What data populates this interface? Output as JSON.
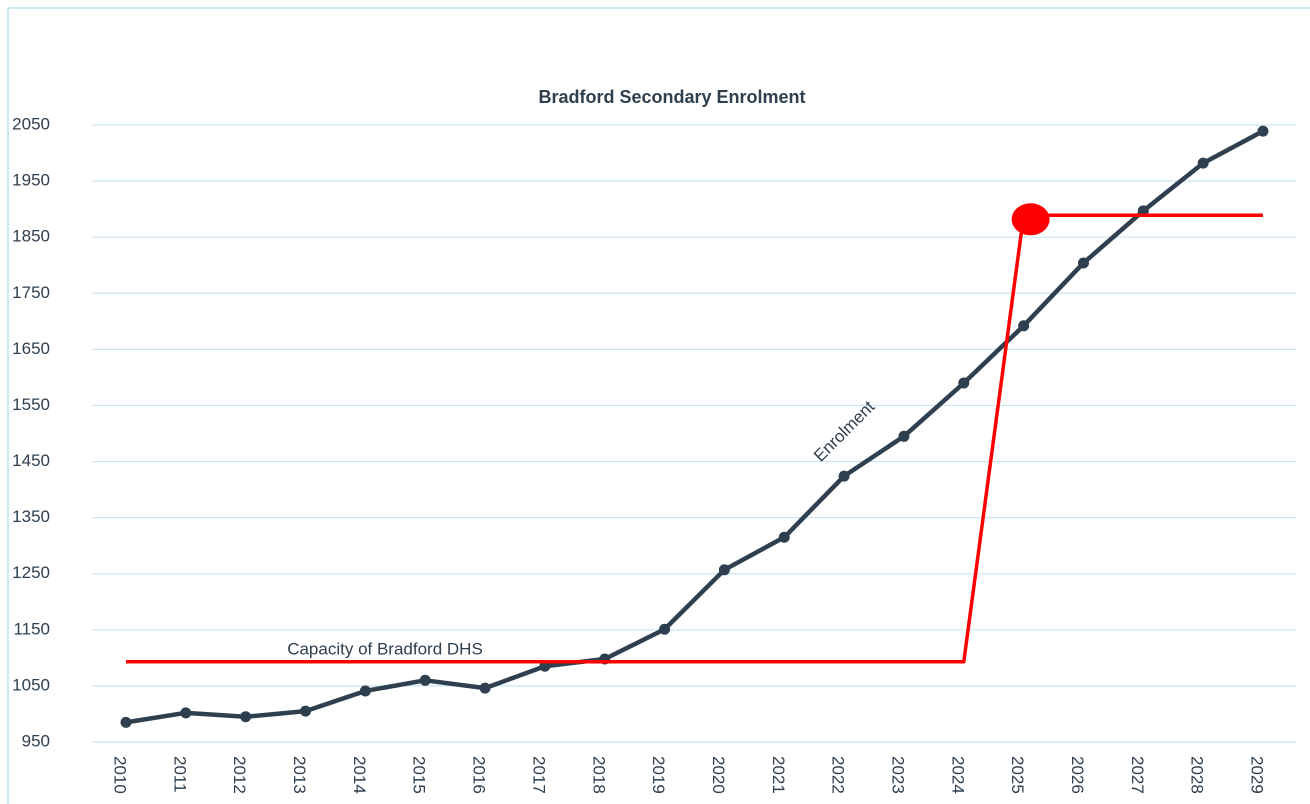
{
  "chart_data": {
    "type": "line",
    "title": "Bradford Secondary Enrolment",
    "categories": [
      "2010",
      "2011",
      "2012",
      "2013",
      "2014",
      "2015",
      "2016",
      "2017",
      "2018",
      "2019",
      "2020",
      "2021",
      "2022",
      "2023",
      "2024",
      "2025",
      "2026",
      "2027",
      "2028",
      "2029"
    ],
    "series": [
      {
        "name": "Enrolment",
        "color": "#2e3f4f",
        "markers": true,
        "values": [
          985,
          1002,
          995,
          1005,
          1041,
          1060,
          1046,
          1085,
          1098,
          1151,
          1257,
          1315,
          1424,
          1495,
          1590,
          1692,
          1804,
          1897,
          1982,
          2039
        ]
      },
      {
        "name": "Capacity of Bradford DHS",
        "color": "#ff0000",
        "markers": false,
        "highlight_index": 15,
        "values": [
          1093,
          1093,
          1093,
          1093,
          1093,
          1093,
          1093,
          1093,
          1093,
          1093,
          1093,
          1093,
          1093,
          1093,
          1093,
          1889,
          1889,
          1889,
          1889,
          1889
        ]
      }
    ],
    "ylim": [
      950,
      2050
    ],
    "yticks": [
      950,
      1050,
      1150,
      1250,
      1350,
      1450,
      1550,
      1650,
      1750,
      1850,
      1950,
      2050
    ],
    "grid": true
  }
}
